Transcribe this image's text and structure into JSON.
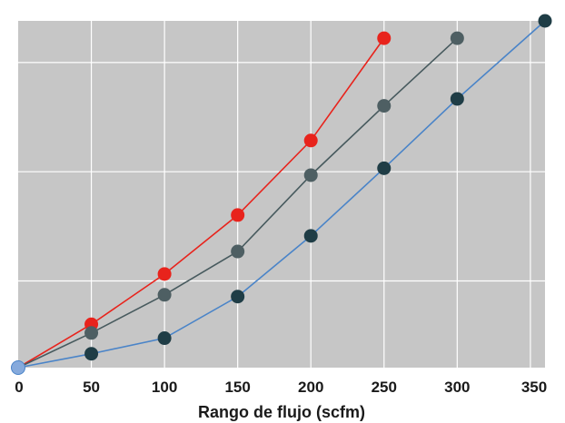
{
  "chart_data": {
    "type": "line",
    "title": "",
    "xlabel": "Rango de flujo (scfm)",
    "ylabel": "",
    "xlim": [
      0,
      360
    ],
    "ylim": [
      0,
      100
    ],
    "x_ticks": [
      "0",
      "50",
      "100",
      "150",
      "200",
      "250",
      "300",
      "350"
    ],
    "grid": true,
    "background": "#c6c6c6",
    "series": [
      {
        "color": "#e8231c",
        "x": [
          0,
          50,
          100,
          150,
          200,
          250
        ],
        "y": [
          0,
          12.5,
          27.0,
          44.0,
          65.5,
          95.0
        ]
      },
      {
        "color": "#475a5e",
        "x": [
          0,
          50,
          100,
          150,
          200,
          250,
          300
        ],
        "y": [
          0,
          10.0,
          21.0,
          33.5,
          55.5,
          75.5,
          95.0
        ]
      },
      {
        "color": "#4a84c8",
        "x": [
          0,
          50,
          100,
          150,
          200,
          250,
          300,
          360
        ],
        "y": [
          0,
          4.0,
          8.5,
          20.5,
          38.0,
          57.5,
          77.5,
          100.0
        ]
      }
    ]
  }
}
